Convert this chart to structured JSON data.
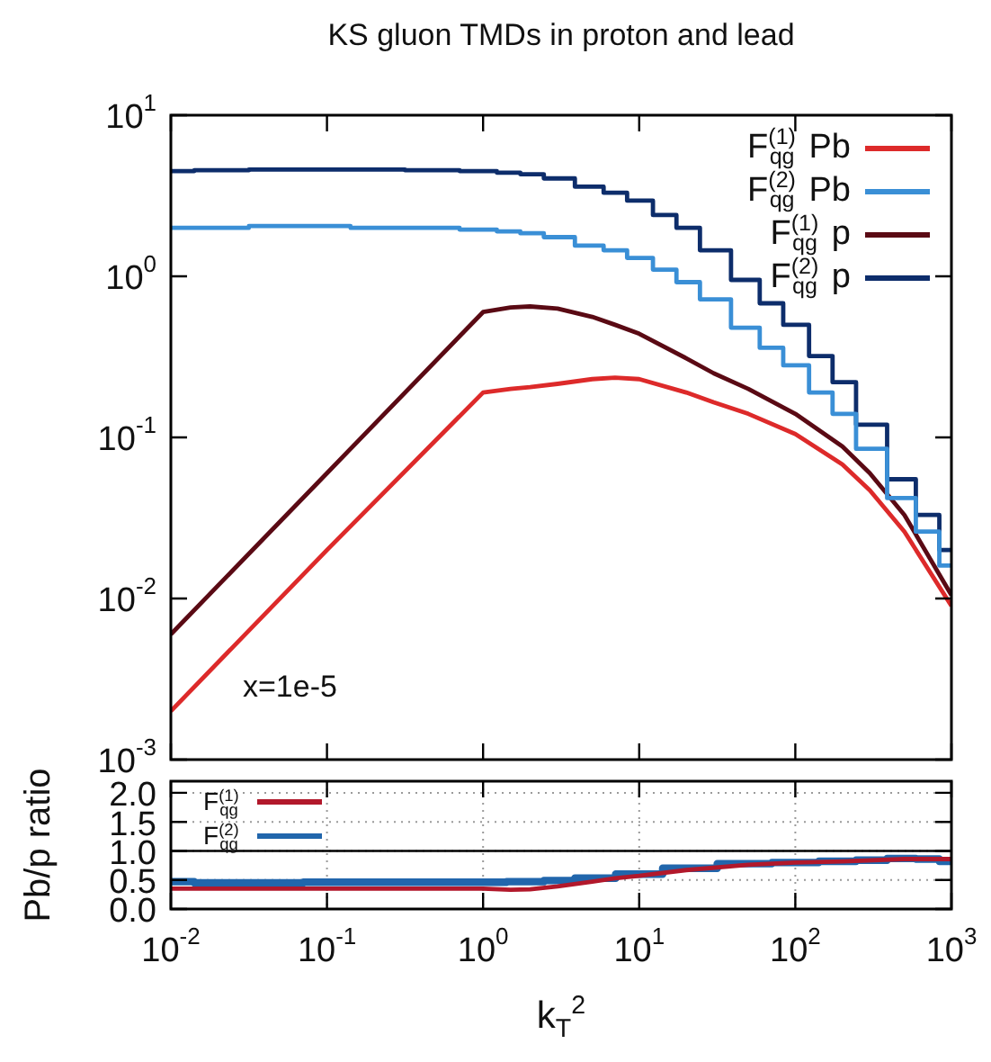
{
  "chart_data": [
    {
      "type": "line",
      "title": "KS gluon TMDs in proton and lead",
      "annotations": [
        "x=1e-5"
      ],
      "xlim": [
        0.01,
        1000
      ],
      "ylim": [
        0.001,
        10
      ],
      "log": "xy",
      "tick_labels": "y",
      "legend": "top right",
      "xticks": [
        0.01,
        0.1,
        1,
        10,
        100,
        1000
      ],
      "yticks": [
        {
          "value": 0.001,
          "label": "10$^{-3}$"
        },
        {
          "value": 0.01,
          "label": "10$^{-2}$"
        },
        {
          "value": 0.1,
          "label": "10$^{-1}$"
        },
        {
          "value": 1,
          "label": "10$^{0}$"
        },
        {
          "value": 10,
          "label": "10$^{1}$"
        }
      ],
      "series": [
        {
          "name": "F$^{(1)}$$_{qg}$ Pb",
          "color": "#dd2a2a",
          "x": [
            0.01,
            0.1,
            1,
            1.5,
            2,
            3,
            5,
            7,
            10,
            20,
            30,
            50,
            100,
            200,
            300,
            500,
            1000
          ],
          "values": [
            0.002,
            0.02,
            0.19,
            0.2,
            0.205,
            0.215,
            0.23,
            0.235,
            0.23,
            0.19,
            0.165,
            0.14,
            0.105,
            0.068,
            0.047,
            0.026,
            0.009
          ]
        },
        {
          "name": "F$^{(2)}$$_{qg}$ Pb",
          "type": "step",
          "color": "#3a8fd6",
          "x": [
            0.01,
            0.02,
            0.05,
            0.1,
            0.2,
            0.5,
            1,
            1.5,
            2,
            3,
            5,
            7,
            10,
            15,
            20,
            30,
            50,
            70,
            100,
            150,
            200,
            300,
            500,
            700,
            1000
          ],
          "values": [
            2.0,
            2.0,
            2.05,
            2.05,
            2.0,
            2.0,
            1.95,
            1.9,
            1.85,
            1.75,
            1.55,
            1.45,
            1.3,
            1.1,
            0.92,
            0.72,
            0.48,
            0.36,
            0.28,
            0.19,
            0.14,
            0.085,
            0.042,
            0.026,
            0.016
          ]
        },
        {
          "name": "F$^{(1)}$$_{qg}$ p",
          "color": "#5a0a14",
          "x": [
            0.01,
            0.1,
            1,
            1.5,
            2,
            3,
            5,
            7,
            10,
            20,
            30,
            50,
            100,
            200,
            300,
            500,
            1000
          ],
          "values": [
            0.006,
            0.06,
            0.6,
            0.64,
            0.65,
            0.63,
            0.56,
            0.5,
            0.44,
            0.31,
            0.25,
            0.2,
            0.14,
            0.088,
            0.06,
            0.033,
            0.0105
          ]
        },
        {
          "name": "F$^{(2)}$$_{qg}$ p",
          "type": "step",
          "color": "#0d2d6b",
          "x": [
            0.01,
            0.02,
            0.05,
            0.1,
            0.2,
            0.5,
            1,
            1.5,
            2,
            3,
            5,
            7,
            10,
            15,
            20,
            30,
            50,
            70,
            100,
            150,
            200,
            300,
            500,
            700,
            1000
          ],
          "values": [
            4.5,
            4.55,
            4.6,
            4.6,
            4.6,
            4.55,
            4.5,
            4.4,
            4.3,
            4.05,
            3.6,
            3.3,
            2.95,
            2.4,
            2.0,
            1.45,
            0.95,
            0.68,
            0.5,
            0.32,
            0.22,
            0.12,
            0.055,
            0.033,
            0.02
          ]
        }
      ]
    },
    {
      "type": "line",
      "xlabel": "k$_{T}$$^{2}$",
      "ylabel": "Pb/p ratio",
      "xlim": [
        0.01,
        1000
      ],
      "ylim": [
        0,
        2.2
      ],
      "log": "x",
      "grid": true,
      "legend": "top left",
      "xticks": [
        {
          "value": 0.01,
          "label": "10$^{-2}$"
        },
        {
          "value": 0.1,
          "label": "10$^{-1}$"
        },
        {
          "value": 1,
          "label": "10$^{0}$"
        },
        {
          "value": 10,
          "label": "10$^{1}$"
        },
        {
          "value": 100,
          "label": "10$^{2}$"
        },
        {
          "value": 1000,
          "label": "10$^{3}$"
        }
      ],
      "yticks": [
        {
          "value": 0,
          "label": "0.0"
        },
        {
          "value": 0.5,
          "label": "0.5"
        },
        {
          "value": 1,
          "label": "1.0"
        },
        {
          "value": 1.5,
          "label": "1.5"
        },
        {
          "value": 2,
          "label": "2.0"
        }
      ],
      "ref_lines": [
        {
          "axis": "y",
          "value": 1,
          "color": "#000000"
        }
      ],
      "series": [
        {
          "name": "F$^{(1)}$$_{qg}$",
          "color": "#b2182b",
          "x": [
            0.01,
            0.1,
            1,
            1.5,
            2,
            3,
            5,
            7,
            10,
            20,
            50,
            100,
            200,
            500,
            1000
          ],
          "values": [
            0.35,
            0.35,
            0.35,
            0.33,
            0.34,
            0.39,
            0.47,
            0.53,
            0.57,
            0.67,
            0.76,
            0.8,
            0.82,
            0.86,
            0.86
          ]
        },
        {
          "name": "F$^{(2)}$$_{qg}$",
          "type": "step",
          "color": "#2166ac",
          "x": [
            0.01,
            0.02,
            0.05,
            0.1,
            0.2,
            0.5,
            1,
            2,
            3,
            5,
            10,
            20,
            50,
            100,
            200,
            300,
            500,
            700,
            1000
          ],
          "values": [
            0.47,
            0.45,
            0.45,
            0.46,
            0.46,
            0.46,
            0.46,
            0.47,
            0.49,
            0.53,
            0.6,
            0.7,
            0.78,
            0.8,
            0.82,
            0.84,
            0.87,
            0.86,
            0.82
          ]
        }
      ]
    }
  ]
}
